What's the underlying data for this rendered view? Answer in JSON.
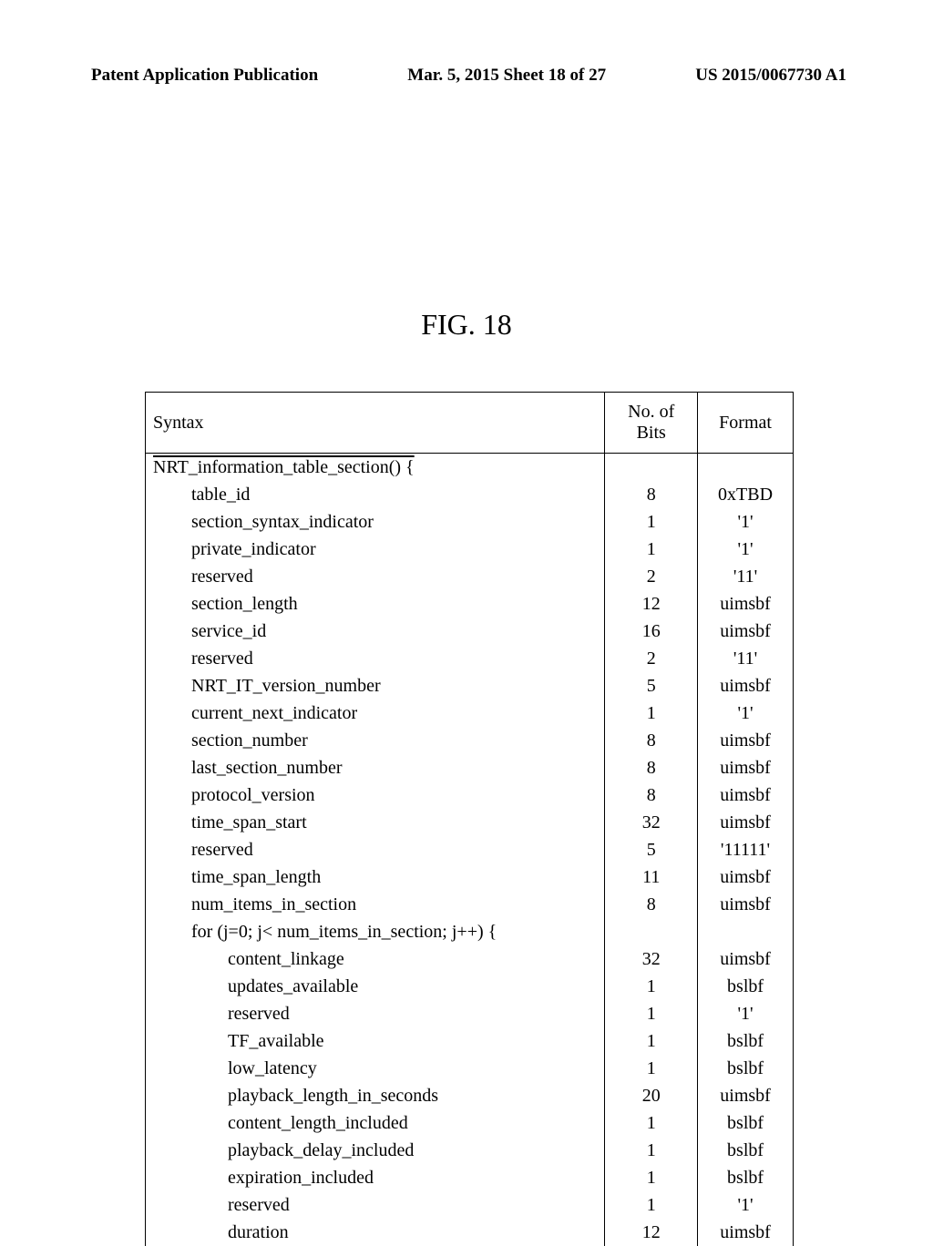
{
  "header": {
    "left": "Patent Application Publication",
    "center": "Mar. 5, 2015  Sheet 18 of 27",
    "right": "US 2015/0067730 A1"
  },
  "figure_label": "FIG. 18",
  "table": {
    "headers": {
      "syntax": "Syntax",
      "bits": "No. of Bits",
      "format": "Format"
    },
    "rows": [
      {
        "syntax": "NRT_information_table_section() {",
        "bits": "",
        "format": "",
        "indent": 0,
        "overline": true
      },
      {
        "syntax": "table_id",
        "bits": "8",
        "format": "0xTBD",
        "indent": 1
      },
      {
        "syntax": "section_syntax_indicator",
        "bits": "1",
        "format": "'1'",
        "indent": 1
      },
      {
        "syntax": "private_indicator",
        "bits": "1",
        "format": "'1'",
        "indent": 1
      },
      {
        "syntax": "reserved",
        "bits": "2",
        "format": "'11'",
        "indent": 1
      },
      {
        "syntax": "section_length",
        "bits": "12",
        "format": "uimsbf",
        "indent": 1
      },
      {
        "syntax": "service_id",
        "bits": "16",
        "format": "uimsbf",
        "indent": 1
      },
      {
        "syntax": "reserved",
        "bits": "2",
        "format": "'11'",
        "indent": 1
      },
      {
        "syntax": "NRT_IT_version_number",
        "bits": "5",
        "format": "uimsbf",
        "indent": 1
      },
      {
        "syntax": "current_next_indicator",
        "bits": "1",
        "format": "'1'",
        "indent": 1
      },
      {
        "syntax": "section_number",
        "bits": "8",
        "format": "uimsbf",
        "indent": 1
      },
      {
        "syntax": "last_section_number",
        "bits": "8",
        "format": "uimsbf",
        "indent": 1
      },
      {
        "syntax": "protocol_version",
        "bits": "8",
        "format": "uimsbf",
        "indent": 1
      },
      {
        "syntax": "time_span_start",
        "bits": "32",
        "format": "uimsbf",
        "indent": 1
      },
      {
        "syntax": "reserved",
        "bits": "5",
        "format": "'11111'",
        "indent": 1
      },
      {
        "syntax": "time_span_length",
        "bits": "11",
        "format": "uimsbf",
        "indent": 1
      },
      {
        "syntax": "num_items_in_section",
        "bits": "8",
        "format": "uimsbf",
        "indent": 1
      },
      {
        "syntax": "for (j=0; j< num_items_in_section; j++) {",
        "bits": "",
        "format": "",
        "indent": 1
      },
      {
        "syntax": "content_linkage",
        "bits": "32",
        "format": "uimsbf",
        "indent": 2
      },
      {
        "syntax": "updates_available",
        "bits": "1",
        "format": "bslbf",
        "indent": 2
      },
      {
        "syntax": "reserved",
        "bits": "1",
        "format": "'1'",
        "indent": 2
      },
      {
        "syntax": "TF_available",
        "bits": "1",
        "format": "bslbf",
        "indent": 2
      },
      {
        "syntax": "low_latency",
        "bits": "1",
        "format": "bslbf",
        "indent": 2
      },
      {
        "syntax": "playback_length_in_seconds",
        "bits": "20",
        "format": "uimsbf",
        "indent": 2
      },
      {
        "syntax": "content_length_included",
        "bits": "1",
        "format": "bslbf",
        "indent": 2
      },
      {
        "syntax": "playback_delay_included",
        "bits": "1",
        "format": "bslbf",
        "indent": 2
      },
      {
        "syntax": "expiration_included",
        "bits": "1",
        "format": "bslbf",
        "indent": 2
      },
      {
        "syntax": "reserved",
        "bits": "1",
        "format": "'1'",
        "indent": 2
      },
      {
        "syntax": "duration",
        "bits": "12",
        "format": "uimsbf",
        "indent": 2
      }
    ]
  }
}
